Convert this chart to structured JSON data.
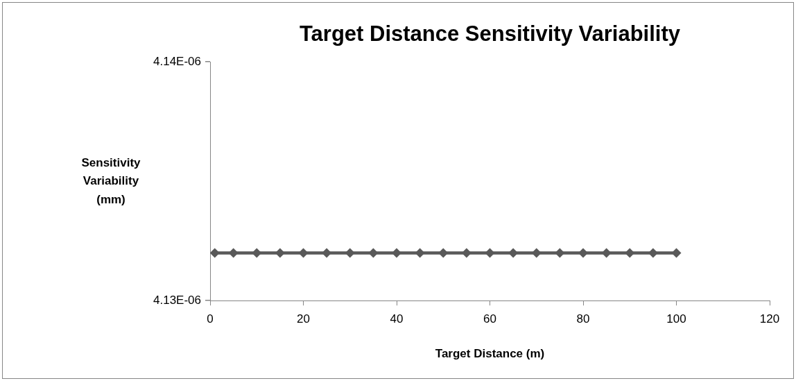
{
  "chart_data": {
    "type": "line",
    "title": "Target Distance Sensitivity Variability",
    "xlabel": "Target Distance (m)",
    "ylabel": "Sensitivity Variability (mm)",
    "x": [
      1,
      5,
      10,
      15,
      20,
      25,
      30,
      35,
      40,
      45,
      50,
      55,
      60,
      65,
      70,
      75,
      80,
      85,
      90,
      95,
      100
    ],
    "series": [
      {
        "color": "#595959",
        "values": [
          4.132e-06,
          4.132e-06,
          4.132e-06,
          4.132e-06,
          4.132e-06,
          4.132e-06,
          4.132e-06,
          4.132e-06,
          4.132e-06,
          4.132e-06,
          4.132e-06,
          4.132e-06,
          4.132e-06,
          4.132e-06,
          4.132e-06,
          4.132e-06,
          4.132e-06,
          4.132e-06,
          4.132e-06,
          4.132e-06,
          4.132e-06
        ]
      }
    ],
    "xlim": [
      0,
      120
    ],
    "xticks": [
      0,
      20,
      40,
      60,
      80,
      100,
      120
    ],
    "ylim": [
      4.13e-06,
      4.14e-06
    ],
    "yticks": [
      {
        "value": 4.13e-06,
        "label": "4.13E-06"
      },
      {
        "value": 4.14e-06,
        "label": "4.14E-06"
      }
    ],
    "legend": false,
    "marker": "diamond",
    "line_style": "solid"
  }
}
